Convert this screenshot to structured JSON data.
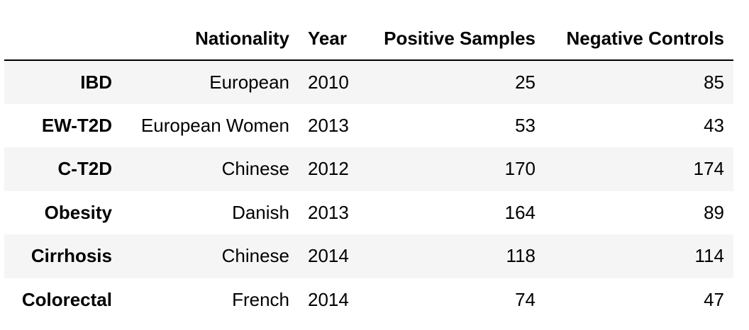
{
  "table": {
    "columns": {
      "index": "",
      "nationality": "Nationality",
      "year": "Year",
      "positive": "Positive Samples",
      "negative": "Negative Controls"
    },
    "rows": [
      {
        "name": "IBD",
        "nationality": "European",
        "year": "2010",
        "positive": "25",
        "negative": "85"
      },
      {
        "name": "EW-T2D",
        "nationality": "European Women",
        "year": "2013",
        "positive": "53",
        "negative": "43"
      },
      {
        "name": "C-T2D",
        "nationality": "Chinese",
        "year": "2012",
        "positive": "170",
        "negative": "174"
      },
      {
        "name": "Obesity",
        "nationality": "Danish",
        "year": "2013",
        "positive": "164",
        "negative": "89"
      },
      {
        "name": "Cirrhosis",
        "nationality": "Chinese",
        "year": "2014",
        "positive": "118",
        "negative": "114"
      },
      {
        "name": "Colorectal",
        "nationality": "French",
        "year": "2014",
        "positive": "74",
        "negative": "47"
      }
    ]
  }
}
